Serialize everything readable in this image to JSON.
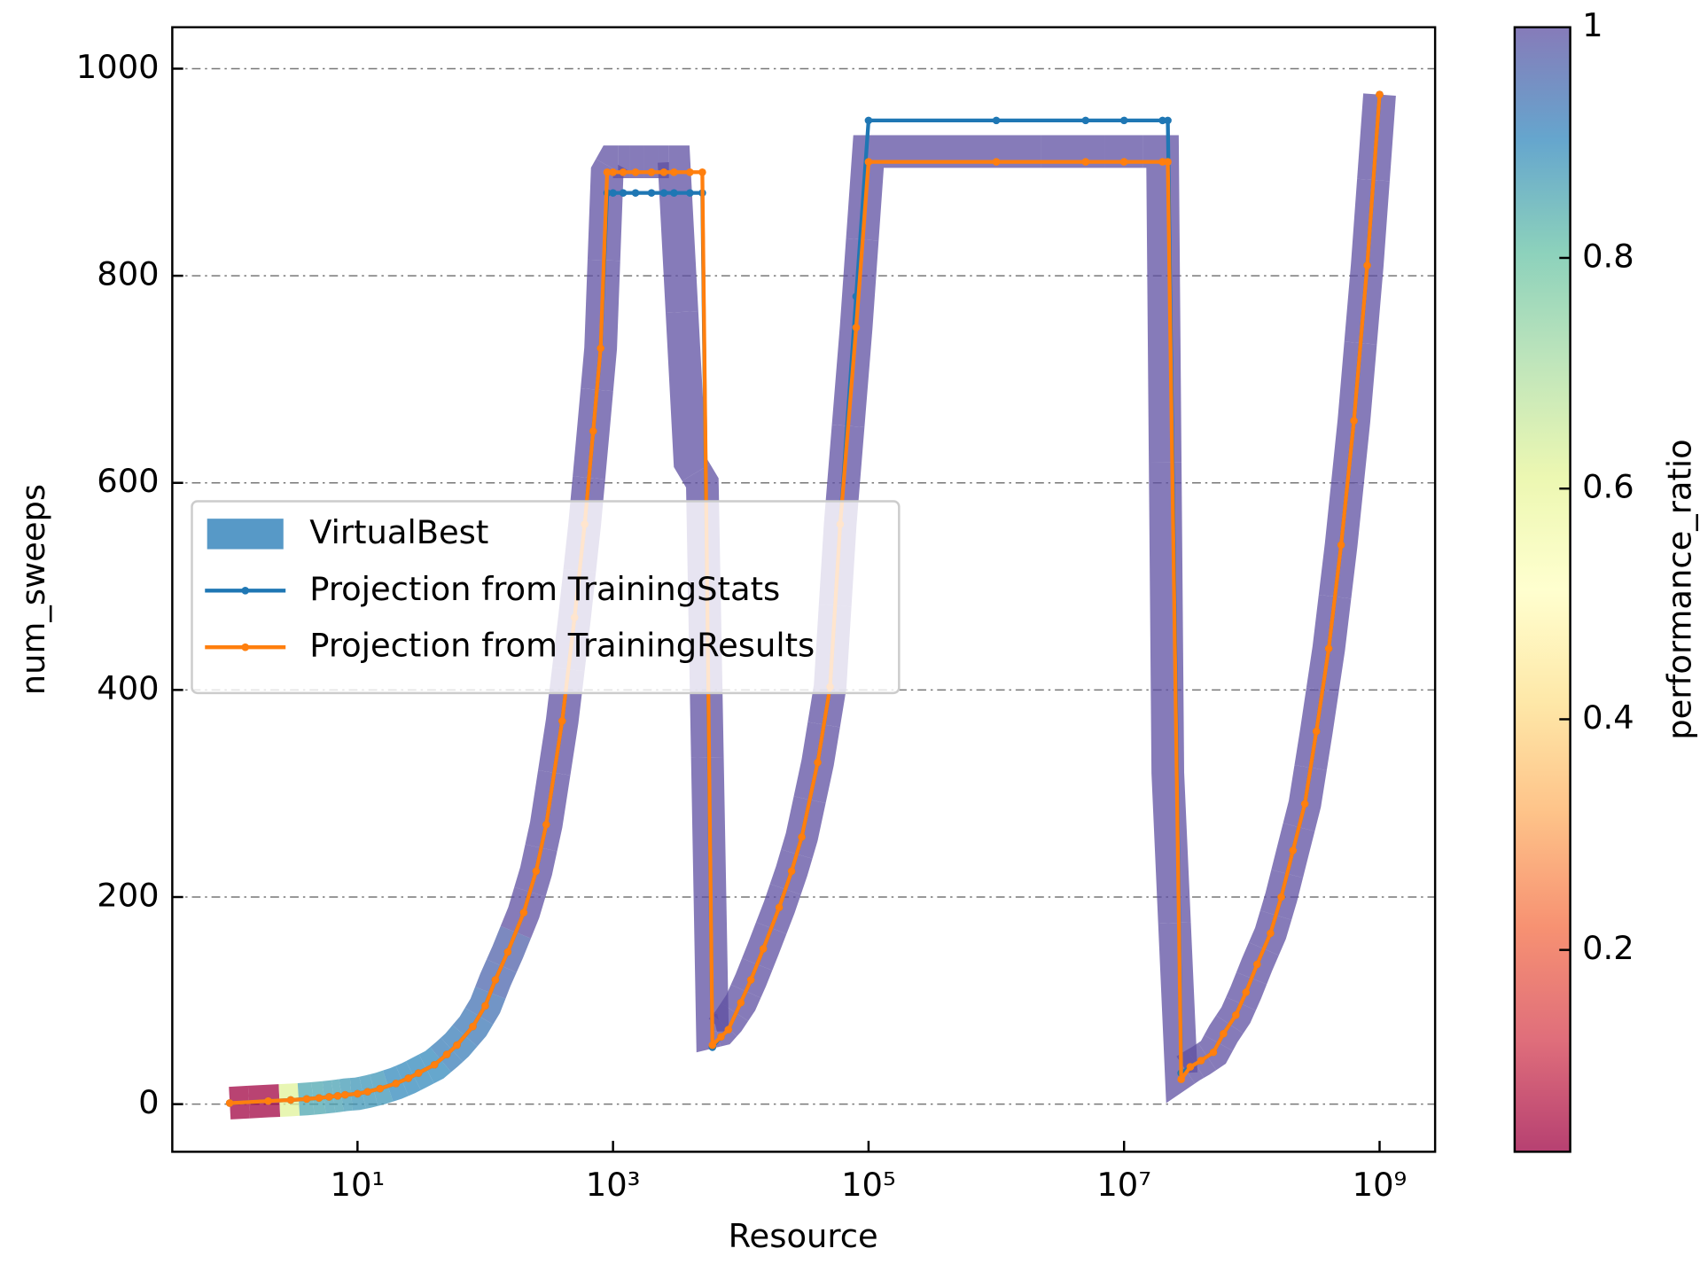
{
  "chart_data": {
    "type": "line",
    "x_label": "Resource",
    "y_label": "num_sweeps",
    "xscale": "log",
    "grid": "y",
    "legend": "center left",
    "xlim": [
      0.355,
      2720000000
    ],
    "ylim": [
      -46,
      1040
    ],
    "xticks": [
      {
        "value": 10,
        "label": "10¹"
      },
      {
        "value": 1000,
        "label": "10³"
      },
      {
        "value": 100000,
        "label": "10⁵"
      },
      {
        "value": 10000000,
        "label": "10⁷"
      },
      {
        "value": 1000000000,
        "label": "10⁹"
      }
    ],
    "yticks": [
      0,
      200,
      400,
      600,
      800,
      1000
    ],
    "colorbar": {
      "label": "performance_ratio",
      "lim": [
        0.025,
        1.0
      ],
      "ticks": [
        0.2,
        0.4,
        0.6,
        0.8,
        1.0
      ],
      "colors": [
        "#9e0142",
        "#d53e4f",
        "#f46d43",
        "#fdae61",
        "#fee08b",
        "#ffffbf",
        "#e6f598",
        "#abdda4",
        "#66c2a5",
        "#3288bd",
        "#5e4fa2"
      ]
    },
    "series": [
      {
        "name": "VirtualBest",
        "kind": "band",
        "color": "#1f77b4",
        "x": [
          1,
          2,
          3,
          4,
          5,
          6,
          7,
          8,
          10,
          12,
          15,
          20,
          25,
          30,
          40,
          50,
          60,
          80,
          100,
          120,
          150,
          200,
          250,
          300,
          400,
          500,
          600,
          700,
          800,
          900,
          1000,
          1200,
          1500,
          2000,
          2500,
          3000,
          4000,
          5000,
          6000,
          7000,
          8000,
          10000,
          12000,
          15000,
          20000,
          25000,
          30000,
          40000,
          50000,
          60000,
          80000,
          100000,
          1000000,
          5000000,
          10000000,
          20000000,
          22000000,
          28000000,
          33000000,
          40000000,
          50000000,
          60000000,
          75000000,
          90000000,
          110000000,
          140000000,
          170000000,
          210000000,
          260000000,
          320000000,
          400000000,
          500000000,
          630000000,
          800000000,
          1000000000
        ],
        "values": [
          1,
          3,
          4,
          5,
          6,
          7,
          8,
          9,
          10,
          12,
          15,
          20,
          25,
          30,
          38,
          48,
          57,
          75,
          95,
          120,
          147,
          185,
          225,
          270,
          370,
          470,
          560,
          650,
          730,
          900,
          910,
          910,
          910,
          910,
          910,
          910,
          620,
          600,
          70,
          72,
          80,
          98,
          120,
          150,
          190,
          225,
          258,
          330,
          403,
          560,
          750,
          920,
          920,
          920,
          920,
          920,
          320,
          30,
          36,
          42,
          50,
          68,
          86,
          108,
          135,
          165,
          200,
          245,
          290,
          360,
          440,
          540,
          660,
          810,
          975
        ],
        "ratio": [
          0.03,
          0.03,
          0.62,
          0.85,
          0.85,
          0.86,
          0.86,
          0.87,
          0.88,
          0.88,
          0.88,
          0.9,
          0.9,
          0.9,
          0.9,
          0.92,
          0.92,
          0.93,
          0.94,
          0.96,
          0.97,
          1.0,
          1.0,
          1.0,
          1.0,
          1.0,
          1.0,
          1.0,
          1.0,
          1.0,
          1.0,
          1.0,
          1.0,
          1.0,
          1.0,
          1.0,
          1.0,
          1.0,
          1.0,
          1.0,
          1.0,
          1.0,
          1.0,
          1.0,
          1.0,
          1.0,
          1.0,
          1.0,
          1.0,
          1.0,
          1.0,
          1.0,
          1.0,
          1.0,
          1.0,
          1.0,
          1.0,
          1.0,
          1.0,
          1.0,
          1.0,
          1.0,
          1.0,
          1.0,
          1.0,
          1.0,
          1.0,
          1.0,
          1.0,
          1.0,
          1.0,
          1.0,
          1.0,
          1.0,
          1.0
        ]
      },
      {
        "name": "Projection from TrainingStats",
        "kind": "line",
        "color": "#1f77b4",
        "x": [
          1,
          2,
          3,
          4,
          5,
          6,
          7,
          8,
          10,
          12,
          15,
          20,
          25,
          30,
          40,
          50,
          60,
          80,
          100,
          120,
          150,
          200,
          250,
          300,
          400,
          500,
          600,
          700,
          800,
          900,
          1000,
          1200,
          1500,
          2000,
          2500,
          3000,
          4000,
          5000,
          6000,
          7000,
          8000,
          10000,
          12000,
          15000,
          20000,
          25000,
          30000,
          40000,
          50000,
          60000,
          80000,
          100000,
          1000000,
          5000000,
          10000000,
          20000000,
          22000000,
          28000000,
          33000000,
          40000000,
          50000000,
          60000000,
          75000000,
          90000000,
          110000000,
          140000000,
          170000000,
          210000000,
          260000000,
          320000000,
          400000000,
          500000000,
          630000000,
          800000000,
          1000000000
        ],
        "values": [
          1,
          3,
          4,
          5,
          6,
          7,
          8,
          9,
          10,
          12,
          15,
          20,
          25,
          30,
          38,
          48,
          57,
          75,
          95,
          120,
          147,
          185,
          225,
          270,
          370,
          470,
          560,
          650,
          730,
          880,
          880,
          880,
          880,
          880,
          880,
          880,
          880,
          880,
          55,
          65,
          72,
          98,
          120,
          150,
          190,
          225,
          258,
          330,
          403,
          560,
          780,
          950,
          950,
          950,
          950,
          950,
          950,
          30,
          36,
          42,
          50,
          68,
          86,
          108,
          135,
          165,
          200,
          245,
          290,
          360,
          440,
          540,
          660,
          810,
          975
        ]
      },
      {
        "name": "Projection from TrainingResults",
        "kind": "line",
        "color": "#ff7f0e",
        "x": [
          1,
          2,
          3,
          4,
          5,
          6,
          7,
          8,
          10,
          12,
          15,
          20,
          25,
          30,
          40,
          50,
          60,
          80,
          100,
          120,
          150,
          200,
          250,
          300,
          400,
          500,
          600,
          700,
          800,
          900,
          1000,
          1200,
          1500,
          2000,
          2500,
          3000,
          4000,
          5000,
          6000,
          7000,
          8000,
          10000,
          12000,
          15000,
          20000,
          25000,
          30000,
          40000,
          50000,
          60000,
          80000,
          100000,
          1000000,
          5000000,
          10000000,
          20000000,
          22000000,
          28000000,
          33000000,
          40000000,
          50000000,
          60000000,
          75000000,
          90000000,
          110000000,
          140000000,
          170000000,
          210000000,
          260000000,
          320000000,
          400000000,
          500000000,
          630000000,
          800000000,
          1000000000
        ],
        "values": [
          1,
          3,
          4,
          5,
          6,
          7,
          8,
          9,
          10,
          12,
          15,
          20,
          25,
          30,
          38,
          48,
          57,
          75,
          95,
          120,
          147,
          185,
          225,
          270,
          370,
          470,
          560,
          650,
          730,
          900,
          900,
          900,
          900,
          900,
          900,
          900,
          900,
          900,
          57,
          65,
          72,
          98,
          120,
          150,
          190,
          225,
          258,
          330,
          403,
          560,
          750,
          910,
          910,
          910,
          910,
          910,
          910,
          24,
          36,
          42,
          50,
          68,
          86,
          108,
          135,
          165,
          200,
          245,
          290,
          360,
          440,
          540,
          660,
          810,
          975
        ]
      }
    ]
  }
}
